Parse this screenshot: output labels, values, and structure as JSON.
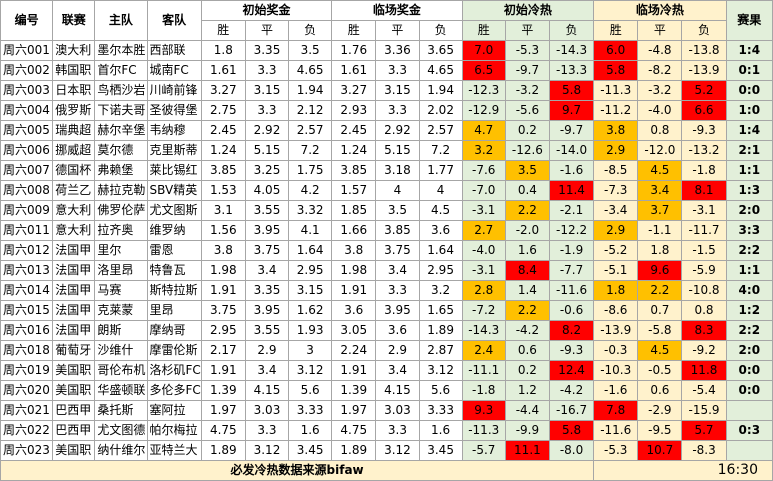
{
  "header": {
    "col_id": "编号",
    "col_league": "联赛",
    "col_home": "主队",
    "col_away": "客队",
    "initial_odds": "初始奖金",
    "closing_odds": "临场奖金",
    "initial_heat": "初始冷热",
    "closing_heat": "临场冷热",
    "result": "赛果",
    "win": "胜",
    "draw": "平",
    "lose": "负"
  },
  "rows": [
    {
      "id": "周六001",
      "league": "澳大利",
      "home": "墨尔本胜",
      "away": "西部联",
      "io": [
        "1.8",
        "3.35",
        "3.5"
      ],
      "co": [
        "1.76",
        "3.36",
        "3.65"
      ],
      "ih": [
        "7.0",
        "-5.3",
        "-14.3"
      ],
      "ihc": [
        "red",
        "",
        ""
      ],
      "ch": [
        "6.0",
        "-4.8",
        "-13.8"
      ],
      "chc": [
        "red",
        "",
        ""
      ],
      "score": "1:4"
    },
    {
      "id": "周六002",
      "league": "韩国职",
      "home": "首尔FC",
      "away": "城南FC",
      "io": [
        "1.61",
        "3.3",
        "4.65"
      ],
      "co": [
        "1.61",
        "3.3",
        "4.65"
      ],
      "ih": [
        "6.5",
        "-9.7",
        "-13.3"
      ],
      "ihc": [
        "red",
        "",
        ""
      ],
      "ch": [
        "5.8",
        "-8.2",
        "-13.9"
      ],
      "chc": [
        "red",
        "",
        ""
      ],
      "score": "0:1"
    },
    {
      "id": "周六003",
      "league": "日本职",
      "home": "鸟栖沙岩",
      "away": "川崎前锋",
      "io": [
        "3.27",
        "3.15",
        "1.94"
      ],
      "co": [
        "3.27",
        "3.15",
        "1.94"
      ],
      "ih": [
        "-12.3",
        "-3.2",
        "5.8"
      ],
      "ihc": [
        "",
        "",
        "red"
      ],
      "ch": [
        "-11.3",
        "-3.2",
        "5.2"
      ],
      "chc": [
        "",
        "",
        "red"
      ],
      "score": "0:0"
    },
    {
      "id": "周六004",
      "league": "俄罗斯",
      "home": "下诺夫哥",
      "away": "圣彼得堡",
      "io": [
        "2.75",
        "3.3",
        "2.12"
      ],
      "co": [
        "2.93",
        "3.3",
        "2.02"
      ],
      "ih": [
        "-12.9",
        "-5.6",
        "9.7"
      ],
      "ihc": [
        "",
        "",
        "red"
      ],
      "ch": [
        "-11.2",
        "-4.0",
        "6.6"
      ],
      "chc": [
        "",
        "",
        "red"
      ],
      "score": "1:0"
    },
    {
      "id": "周六005",
      "league": "瑞典超",
      "home": "赫尔辛堡",
      "away": "韦纳穆",
      "io": [
        "2.45",
        "2.92",
        "2.57"
      ],
      "co": [
        "2.45",
        "2.92",
        "2.57"
      ],
      "ih": [
        "4.7",
        "0.2",
        "-9.7"
      ],
      "ihc": [
        "org",
        "",
        ""
      ],
      "ch": [
        "3.8",
        "0.8",
        "-9.3"
      ],
      "chc": [
        "org",
        "",
        ""
      ],
      "score": "1:4"
    },
    {
      "id": "周六006",
      "league": "挪威超",
      "home": "莫尔德",
      "away": "克里斯蒂",
      "io": [
        "1.24",
        "5.15",
        "7.2"
      ],
      "co": [
        "1.24",
        "5.15",
        "7.2"
      ],
      "ih": [
        "3.2",
        "-12.6",
        "-14.0"
      ],
      "ihc": [
        "org",
        "",
        ""
      ],
      "ch": [
        "2.9",
        "-12.0",
        "-13.2"
      ],
      "chc": [
        "org",
        "",
        ""
      ],
      "score": "2:1"
    },
    {
      "id": "周六007",
      "league": "德国杯",
      "home": "弗赖堡",
      "away": "莱比锡红",
      "io": [
        "3.85",
        "3.25",
        "1.75"
      ],
      "co": [
        "3.85",
        "3.18",
        "1.77"
      ],
      "ih": [
        "-7.6",
        "3.5",
        "-1.6"
      ],
      "ihc": [
        "",
        "org",
        ""
      ],
      "ch": [
        "-8.5",
        "4.5",
        "-1.8"
      ],
      "chc": [
        "",
        "org",
        ""
      ],
      "score": "1:1"
    },
    {
      "id": "周六008",
      "league": "荷兰乙",
      "home": "赫拉克勒",
      "away": "SBV精英",
      "io": [
        "1.53",
        "4.05",
        "4.2"
      ],
      "co": [
        "1.57",
        "4",
        "4"
      ],
      "ih": [
        "-7.0",
        "0.4",
        "11.4"
      ],
      "ihc": [
        "",
        "",
        "red"
      ],
      "ch": [
        "-7.3",
        "3.4",
        "8.1"
      ],
      "chc": [
        "",
        "org",
        "red"
      ],
      "score": "1:3"
    },
    {
      "id": "周六009",
      "league": "意大利",
      "home": "佛罗伦萨",
      "away": "尤文图斯",
      "io": [
        "3.1",
        "3.55",
        "3.32"
      ],
      "co": [
        "1.85",
        "3.5",
        "4.5"
      ],
      "ih": [
        "-3.1",
        "2.2",
        "-2.1"
      ],
      "ihc": [
        "",
        "org",
        ""
      ],
      "ch": [
        "-3.4",
        "3.7",
        "-3.1"
      ],
      "chc": [
        "",
        "org",
        ""
      ],
      "score": "2:0"
    },
    {
      "id": "周六011",
      "league": "意大利",
      "home": "拉齐奥",
      "away": "维罗纳",
      "io": [
        "1.56",
        "3.95",
        "4.1"
      ],
      "co": [
        "1.66",
        "3.85",
        "3.6"
      ],
      "ih": [
        "2.7",
        "-2.0",
        "-12.2"
      ],
      "ihc": [
        "org",
        "",
        ""
      ],
      "ch": [
        "2.9",
        "-1.1",
        "-11.7"
      ],
      "chc": [
        "org",
        "",
        ""
      ],
      "score": "3:3"
    },
    {
      "id": "周六012",
      "league": "法国甲",
      "home": "里尔",
      "away": "雷恩",
      "io": [
        "3.8",
        "3.75",
        "1.64"
      ],
      "co": [
        "3.8",
        "3.75",
        "1.64"
      ],
      "ih": [
        "-4.0",
        "1.6",
        "-1.9"
      ],
      "ihc": [
        "",
        "",
        ""
      ],
      "ch": [
        "-5.2",
        "1.8",
        "-1.5"
      ],
      "chc": [
        "",
        "",
        ""
      ],
      "score": "2:2"
    },
    {
      "id": "周六013",
      "league": "法国甲",
      "home": "洛里昂",
      "away": "特鲁瓦",
      "io": [
        "1.98",
        "3.4",
        "2.95"
      ],
      "co": [
        "1.98",
        "3.4",
        "2.95"
      ],
      "ih": [
        "-3.1",
        "8.4",
        "-7.7"
      ],
      "ihc": [
        "",
        "red",
        ""
      ],
      "ch": [
        "-5.1",
        "9.6",
        "-5.9"
      ],
      "chc": [
        "",
        "red",
        ""
      ],
      "score": "1:1"
    },
    {
      "id": "周六014",
      "league": "法国甲",
      "home": "马赛",
      "away": "斯特拉斯",
      "io": [
        "1.91",
        "3.35",
        "3.15"
      ],
      "co": [
        "1.91",
        "3.3",
        "3.2"
      ],
      "ih": [
        "2.8",
        "1.4",
        "-11.6"
      ],
      "ihc": [
        "org",
        "",
        ""
      ],
      "ch": [
        "1.8",
        "2.2",
        "-10.8"
      ],
      "chc": [
        "org",
        "org",
        ""
      ],
      "score": "4:0"
    },
    {
      "id": "周六015",
      "league": "法国甲",
      "home": "克莱蒙",
      "away": "里昂",
      "io": [
        "3.75",
        "3.95",
        "1.62"
      ],
      "co": [
        "3.6",
        "3.95",
        "1.65"
      ],
      "ih": [
        "-7.2",
        "2.2",
        "-0.6"
      ],
      "ihc": [
        "",
        "org",
        ""
      ],
      "ch": [
        "-8.6",
        "0.7",
        "0.8"
      ],
      "chc": [
        "",
        "",
        ""
      ],
      "score": "1:2"
    },
    {
      "id": "周六016",
      "league": "法国甲",
      "home": "朗斯",
      "away": "摩纳哥",
      "io": [
        "2.95",
        "3.55",
        "1.93"
      ],
      "co": [
        "3.05",
        "3.6",
        "1.89"
      ],
      "ih": [
        "-14.3",
        "-4.2",
        "8.2"
      ],
      "ihc": [
        "",
        "",
        "red"
      ],
      "ch": [
        "-13.9",
        "-5.8",
        "8.3"
      ],
      "chc": [
        "",
        "",
        "red"
      ],
      "score": "2:2"
    },
    {
      "id": "周六018",
      "league": "葡萄牙",
      "home": "沙维什",
      "away": "摩雷伦斯",
      "io": [
        "2.17",
        "2.9",
        "3"
      ],
      "co": [
        "2.24",
        "2.9",
        "2.87"
      ],
      "ih": [
        "2.4",
        "0.6",
        "-9.3"
      ],
      "ihc": [
        "org",
        "",
        ""
      ],
      "ch": [
        "-0.3",
        "4.5",
        "-9.2"
      ],
      "chc": [
        "",
        "org",
        ""
      ],
      "score": "2:0"
    },
    {
      "id": "周六019",
      "league": "美国职",
      "home": "哥伦布机",
      "away": "洛杉矶FC",
      "io": [
        "1.91",
        "3.4",
        "3.12"
      ],
      "co": [
        "1.91",
        "3.4",
        "3.12"
      ],
      "ih": [
        "-11.1",
        "0.2",
        "12.4"
      ],
      "ihc": [
        "",
        "",
        "red"
      ],
      "ch": [
        "-10.3",
        "-0.5",
        "11.8"
      ],
      "chc": [
        "",
        "",
        "red"
      ],
      "score": "0:0"
    },
    {
      "id": "周六020",
      "league": "美国职",
      "home": "华盛顿联",
      "away": "多伦多FC",
      "io": [
        "1.39",
        "4.15",
        "5.6"
      ],
      "co": [
        "1.39",
        "4.15",
        "5.6"
      ],
      "ih": [
        "-1.8",
        "1.2",
        "-4.2"
      ],
      "ihc": [
        "",
        "",
        ""
      ],
      "ch": [
        "-1.6",
        "0.6",
        "-5.4"
      ],
      "chc": [
        "",
        "",
        ""
      ],
      "score": "0:0"
    },
    {
      "id": "周六021",
      "league": "巴西甲",
      "home": "桑托斯",
      "away": "塞阿拉",
      "io": [
        "1.97",
        "3.03",
        "3.33"
      ],
      "co": [
        "1.97",
        "3.03",
        "3.33"
      ],
      "ih": [
        "9.3",
        "-4.4",
        "-16.7"
      ],
      "ihc": [
        "red",
        "",
        ""
      ],
      "ch": [
        "7.8",
        "-2.9",
        "-15.9"
      ],
      "chc": [
        "red",
        "",
        ""
      ],
      "score": ""
    },
    {
      "id": "周六022",
      "league": "巴西甲",
      "home": "尤文图德",
      "away": "帕尔梅拉",
      "io": [
        "4.75",
        "3.3",
        "1.6"
      ],
      "co": [
        "4.75",
        "3.3",
        "1.6"
      ],
      "ih": [
        "-11.3",
        "-9.9",
        "5.8"
      ],
      "ihc": [
        "",
        "",
        "red"
      ],
      "ch": [
        "-11.6",
        "-9.5",
        "5.7"
      ],
      "chc": [
        "",
        "",
        "red"
      ],
      "score": "0:3"
    },
    {
      "id": "周六023",
      "league": "美国职",
      "home": "纳什维尔",
      "away": "亚特兰大",
      "io": [
        "1.89",
        "3.12",
        "3.45"
      ],
      "co": [
        "1.89",
        "3.12",
        "3.45"
      ],
      "ih": [
        "-5.7",
        "11.1",
        "-8.0"
      ],
      "ihc": [
        "",
        "red",
        ""
      ],
      "ch": [
        "-5.3",
        "10.7",
        "-8.3"
      ],
      "chc": [
        "",
        "red",
        ""
      ],
      "score": ""
    }
  ],
  "footer": {
    "note": "必发冷热数据来源bifaw",
    "time": "16:30"
  }
}
